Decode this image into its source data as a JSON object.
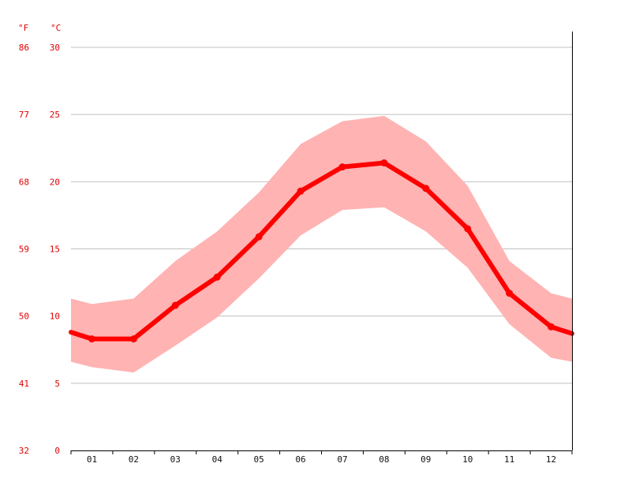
{
  "chart_data": {
    "type": "line",
    "units": {
      "left": "°F",
      "right": "°C"
    },
    "categories": [
      "01",
      "02",
      "03",
      "04",
      "05",
      "06",
      "07",
      "08",
      "09",
      "10",
      "11",
      "12"
    ],
    "series": [
      {
        "values": [
          8.3,
          8.3,
          10.8,
          12.9,
          15.9,
          19.3,
          21.1,
          21.4,
          19.5,
          16.5,
          11.7,
          9.2
        ]
      }
    ],
    "band": {
      "upper": [
        10.9,
        11.3,
        14.1,
        16.3,
        19.2,
        22.8,
        24.5,
        24.9,
        23.0,
        19.7,
        14.1,
        11.7
      ],
      "lower": [
        6.2,
        5.8,
        7.8,
        9.9,
        12.8,
        16.0,
        17.9,
        18.1,
        16.3,
        13.6,
        9.4,
        6.9
      ]
    },
    "edge_values": {
      "start": 8.8,
      "end": 8.7
    },
    "band_edges": {
      "start": [
        11.3,
        6.6
      ],
      "end": [
        11.3,
        6.6
      ]
    },
    "y_ticks_c": [
      "0",
      "5",
      "10",
      "15",
      "20",
      "25",
      "30"
    ],
    "y_ticks_f": [
      "32",
      "41",
      "50",
      "59",
      "68",
      "77",
      "86"
    ],
    "ylim": [
      0,
      30
    ],
    "grid": true,
    "colors": {
      "line": "#ff0000",
      "band": "#ffb3b3",
      "grid": "#c0c0c0",
      "axis": "#000000",
      "label": "#e00000"
    }
  }
}
